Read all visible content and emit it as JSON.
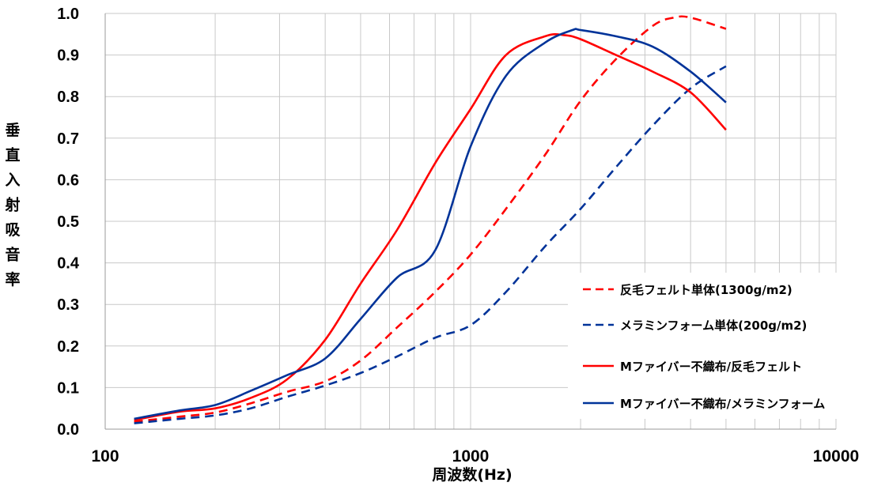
{
  "chart_data": {
    "type": "line",
    "xlabel": "周波数(Hz)",
    "ylabel": "垂直入射吸音率",
    "x_scale": "log",
    "xlim": [
      100,
      10000
    ],
    "ylim": [
      0,
      1.0
    ],
    "x_ticks": [
      "100",
      "1000",
      "10000"
    ],
    "y_ticks": [
      "0.0",
      "0.1",
      "0.2",
      "0.3",
      "0.4",
      "0.5",
      "0.6",
      "0.7",
      "0.8",
      "0.9",
      "1.0"
    ],
    "grid": true,
    "legend_position": "bottom-right",
    "series": [
      {
        "name": "反毛フェルト単体(1300g/m2)",
        "color": "#ff0000",
        "dash": true,
        "points": [
          [
            120,
            0.018
          ],
          [
            160,
            0.03
          ],
          [
            200,
            0.04
          ],
          [
            250,
            0.062
          ],
          [
            315,
            0.09
          ],
          [
            400,
            0.115
          ],
          [
            500,
            0.165
          ],
          [
            630,
            0.245
          ],
          [
            800,
            0.33
          ],
          [
            1000,
            0.42
          ],
          [
            1250,
            0.53
          ],
          [
            1600,
            0.66
          ],
          [
            2000,
            0.79
          ],
          [
            2500,
            0.89
          ],
          [
            3150,
            0.97
          ],
          [
            3600,
            0.99
          ],
          [
            4000,
            0.99
          ],
          [
            5000,
            0.963
          ]
        ]
      },
      {
        "name": "メラミンフォーム単体(200g/m2)",
        "color": "#003399",
        "dash": true,
        "points": [
          [
            120,
            0.014
          ],
          [
            160,
            0.025
          ],
          [
            200,
            0.033
          ],
          [
            250,
            0.05
          ],
          [
            315,
            0.078
          ],
          [
            400,
            0.105
          ],
          [
            500,
            0.135
          ],
          [
            630,
            0.175
          ],
          [
            800,
            0.22
          ],
          [
            1000,
            0.25
          ],
          [
            1250,
            0.33
          ],
          [
            1600,
            0.44
          ],
          [
            2000,
            0.53
          ],
          [
            2500,
            0.63
          ],
          [
            3150,
            0.73
          ],
          [
            4000,
            0.82
          ],
          [
            5000,
            0.873
          ]
        ]
      },
      {
        "name": "Mファイバー不織布/反毛フェルト",
        "color": "#ff0000",
        "dash": false,
        "points": [
          [
            120,
            0.022
          ],
          [
            160,
            0.042
          ],
          [
            200,
            0.05
          ],
          [
            250,
            0.075
          ],
          [
            315,
            0.12
          ],
          [
            400,
            0.215
          ],
          [
            500,
            0.35
          ],
          [
            630,
            0.48
          ],
          [
            800,
            0.64
          ],
          [
            1000,
            0.77
          ],
          [
            1250,
            0.9
          ],
          [
            1600,
            0.945
          ],
          [
            1800,
            0.948
          ],
          [
            2000,
            0.938
          ],
          [
            2500,
            0.9
          ],
          [
            3150,
            0.86
          ],
          [
            4000,
            0.81
          ],
          [
            5000,
            0.72
          ]
        ]
      },
      {
        "name": "Mファイバー不織布/メラミンフォーム",
        "color": "#003399",
        "dash": false,
        "points": [
          [
            120,
            0.025
          ],
          [
            160,
            0.045
          ],
          [
            200,
            0.058
          ],
          [
            250,
            0.092
          ],
          [
            315,
            0.13
          ],
          [
            400,
            0.17
          ],
          [
            500,
            0.265
          ],
          [
            630,
            0.365
          ],
          [
            800,
            0.43
          ],
          [
            1000,
            0.68
          ],
          [
            1250,
            0.85
          ],
          [
            1600,
            0.93
          ],
          [
            1900,
            0.96
          ],
          [
            2000,
            0.96
          ],
          [
            2500,
            0.945
          ],
          [
            3150,
            0.92
          ],
          [
            4000,
            0.86
          ],
          [
            5000,
            0.786
          ]
        ]
      }
    ]
  }
}
